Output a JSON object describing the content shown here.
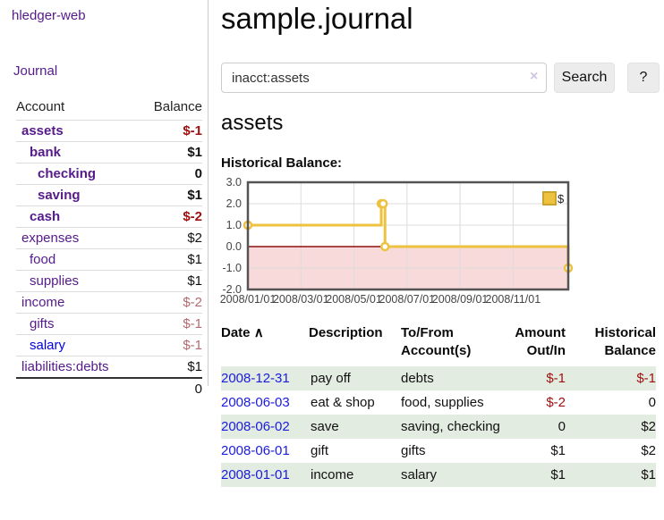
{
  "sidebar": {
    "brand": "hledger-web",
    "journal_link": "Journal",
    "accounts_table": {
      "account_header": "Account",
      "balance_header": "Balance",
      "rows": [
        {
          "name": "assets",
          "depth": 1,
          "balance": "$-1",
          "bold": true,
          "neg": "strong"
        },
        {
          "name": "bank",
          "depth": 2,
          "balance": "$1",
          "bold": true,
          "neg": "none"
        },
        {
          "name": "checking",
          "depth": 3,
          "balance": "0",
          "bold": true,
          "neg": "none"
        },
        {
          "name": "saving",
          "depth": 3,
          "balance": "$1",
          "bold": true,
          "neg": "none"
        },
        {
          "name": "cash",
          "depth": 2,
          "balance": "$-2",
          "bold": true,
          "neg": "strong"
        },
        {
          "name": "expenses",
          "depth": 1,
          "balance": "$2",
          "bold": false,
          "neg": "none"
        },
        {
          "name": "food",
          "depth": 2,
          "balance": "$1",
          "bold": false,
          "neg": "none"
        },
        {
          "name": "supplies",
          "depth": 2,
          "balance": "$1",
          "bold": false,
          "neg": "none"
        },
        {
          "name": "income",
          "depth": 1,
          "balance": "$-2",
          "bold": false,
          "neg": "soft"
        },
        {
          "name": "gifts",
          "depth": 2,
          "balance": "$-1",
          "bold": false,
          "neg": "soft"
        },
        {
          "name": "salary",
          "depth": 2,
          "balance": "$-1",
          "bold": false,
          "neg": "soft",
          "link_color": "blue"
        },
        {
          "name": "liabilities:debts",
          "depth": 1,
          "balance": "$1",
          "bold": false,
          "neg": "none"
        }
      ],
      "total": "0"
    }
  },
  "header": {
    "title": "sample.journal"
  },
  "search": {
    "value": "inacct:assets",
    "clear_icon": "×",
    "search_label": "Search",
    "help_label": "?"
  },
  "account_page": {
    "heading": "assets",
    "chart_label": "Historical Balance:"
  },
  "chart_data": {
    "type": "line",
    "step": true,
    "title": "Historical Balance:",
    "legend": "$",
    "legend_position": "top-right",
    "series": [
      {
        "name": "$",
        "points_months_value": [
          [
            0,
            1
          ],
          [
            5.03,
            2
          ],
          [
            5.1,
            2
          ],
          [
            5.17,
            0
          ],
          [
            12.08,
            -1
          ]
        ],
        "point_dates": [
          "2008-01-01",
          "2008-06-01",
          "2008-06-02",
          "2008-06-03",
          "2008-12-31"
        ],
        "line_color": "#edc240"
      }
    ],
    "x_ticks": [
      {
        "m": 0,
        "label": "2008/01/01"
      },
      {
        "m": 2,
        "label": "2008/03/01"
      },
      {
        "m": 4,
        "label": "2008/05/01"
      },
      {
        "m": 6,
        "label": "2008/07/01"
      },
      {
        "m": 8,
        "label": "2008/09/01"
      },
      {
        "m": 10,
        "label": "2008/11/01"
      }
    ],
    "y_ticks": [
      "3.0",
      "2.0",
      "1.0",
      "0.0",
      "-1.0",
      "-2.0"
    ],
    "xlim": [
      0,
      12.08
    ],
    "ylim": [
      -2,
      3
    ],
    "grid": true,
    "negative_region_color": "#f9dada",
    "zero_line_color": "#8b1010",
    "grid_color": "#dcdcdc",
    "border_color": "#545454",
    "marker_fill": "#ffffff"
  },
  "register_table": {
    "headers": {
      "date": "Date",
      "sort_icon": "∧",
      "description": "Description",
      "tofrom_line1": "To/From",
      "tofrom_line2": "Account(s)",
      "amount_line1": "Amount",
      "amount_line2": "Out/In",
      "balance_line1": "Historical",
      "balance_line2": "Balance"
    },
    "rows": [
      {
        "date": "2008-12-31",
        "description": "pay off",
        "accounts": "debts",
        "amount": "$-1",
        "balance": "$-1",
        "amount_neg": true,
        "balance_neg": true,
        "shaded": true
      },
      {
        "date": "2008-06-03",
        "description": "eat & shop",
        "accounts": "food, supplies",
        "amount": "$-2",
        "balance": "0",
        "amount_neg": true,
        "balance_neg": false,
        "shaded": false
      },
      {
        "date": "2008-06-02",
        "description": "save",
        "accounts": "saving, checking",
        "amount": "0",
        "balance": "$2",
        "amount_neg": false,
        "balance_neg": false,
        "shaded": true
      },
      {
        "date": "2008-06-01",
        "description": "gift",
        "accounts": "gifts",
        "amount": "$1",
        "balance": "$2",
        "amount_neg": false,
        "balance_neg": false,
        "shaded": false
      },
      {
        "date": "2008-01-01",
        "description": "income",
        "accounts": "salary",
        "amount": "$1",
        "balance": "$1",
        "amount_neg": false,
        "balance_neg": false,
        "shaded": true
      }
    ]
  },
  "colors": {
    "link_purple": "#551a8b",
    "link_blue": "#1a1ae0",
    "negative_strong": "#a01010",
    "negative_soft": "#b36a6e",
    "row_shade_green": "#e3ece1",
    "chart_line_gold": "#edc240"
  }
}
